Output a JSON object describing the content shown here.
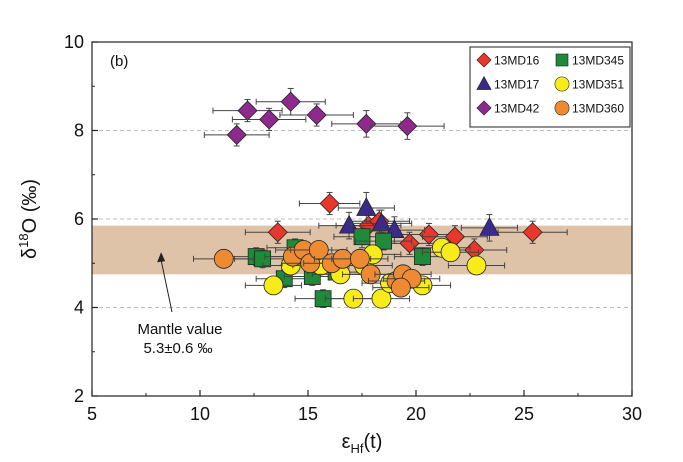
{
  "chart_data": {
    "type": "scatter",
    "panel_label": "(b)",
    "xlabel": {
      "main": "ε",
      "sub": "Hf",
      "tail": "(t)"
    },
    "ylabel": {
      "pre": "δ",
      "sup": "18",
      "post": "O (‰)"
    },
    "xlim": [
      5,
      30
    ],
    "ylim": [
      2,
      10
    ],
    "xticks": [
      5,
      10,
      15,
      20,
      25,
      30
    ],
    "yticks": [
      2,
      4,
      6,
      8,
      10
    ],
    "grid_dashed_y": [
      4,
      6,
      8
    ],
    "mantle_band": {
      "center": 5.3,
      "half_width": 0.55,
      "color": "#d8b89a",
      "label_line1": "Mantle value",
      "label_line2": "5.3±0.6 ‰",
      "arrow_target": [
        8.2,
        5.25
      ]
    },
    "legend": [
      {
        "name": "13MD16",
        "shape": "diamond",
        "color": "#e8372b"
      },
      {
        "name": "13MD345",
        "shape": "square",
        "color": "#1e8a3a"
      },
      {
        "name": "13MD17",
        "shape": "triangle",
        "color": "#3a2a8a"
      },
      {
        "name": "13MD351",
        "shape": "circle",
        "color": "#f7ec1a"
      },
      {
        "name": "13MD42",
        "shape": "diamond",
        "color": "#8e2a8e"
      },
      {
        "name": "13MD360",
        "shape": "circle",
        "color": "#ee8a32"
      }
    ],
    "series": [
      {
        "name": "13MD42",
        "shape": "diamond",
        "color": "#8e2a8e",
        "points": [
          {
            "x": 11.7,
            "y": 7.9,
            "xerr": 1.5,
            "yerr": 0.25
          },
          {
            "x": 12.2,
            "y": 8.45,
            "xerr": 1.6,
            "yerr": 0.25
          },
          {
            "x": 13.2,
            "y": 8.25,
            "xerr": 1.7,
            "yerr": 0.25
          },
          {
            "x": 14.2,
            "y": 8.65,
            "xerr": 1.6,
            "yerr": 0.3
          },
          {
            "x": 15.4,
            "y": 8.35,
            "xerr": 1.7,
            "yerr": 0.25
          },
          {
            "x": 17.7,
            "y": 8.15,
            "xerr": 1.6,
            "yerr": 0.3
          },
          {
            "x": 19.6,
            "y": 8.1,
            "xerr": 1.7,
            "yerr": 0.3
          }
        ]
      },
      {
        "name": "13MD16",
        "shape": "diamond",
        "color": "#e8372b",
        "points": [
          {
            "x": 13.6,
            "y": 5.7,
            "xerr": 1.5,
            "yerr": 0.25
          },
          {
            "x": 16.0,
            "y": 6.35,
            "xerr": 1.4,
            "yerr": 0.25
          },
          {
            "x": 17.8,
            "y": 5.85,
            "xerr": 1.5,
            "yerr": 0.25
          },
          {
            "x": 18.3,
            "y": 5.95,
            "xerr": 1.4,
            "yerr": 0.25
          },
          {
            "x": 19.7,
            "y": 5.45,
            "xerr": 1.5,
            "yerr": 0.25
          },
          {
            "x": 20.6,
            "y": 5.65,
            "xerr": 1.4,
            "yerr": 0.25
          },
          {
            "x": 21.8,
            "y": 5.6,
            "xerr": 1.5,
            "yerr": 0.25
          },
          {
            "x": 22.7,
            "y": 5.3,
            "xerr": 1.5,
            "yerr": 0.25
          },
          {
            "x": 25.4,
            "y": 5.7,
            "xerr": 1.6,
            "yerr": 0.25
          }
        ]
      },
      {
        "name": "13MD17",
        "shape": "triangle",
        "color": "#3a2a8a",
        "points": [
          {
            "x": 16.9,
            "y": 5.85,
            "xerr": 1.4,
            "yerr": 0.3
          },
          {
            "x": 17.7,
            "y": 6.25,
            "xerr": 1.3,
            "yerr": 0.35
          },
          {
            "x": 18.4,
            "y": 5.9,
            "xerr": 1.4,
            "yerr": 0.3
          },
          {
            "x": 19.0,
            "y": 5.75,
            "xerr": 1.4,
            "yerr": 0.3
          },
          {
            "x": 23.4,
            "y": 5.8,
            "xerr": 1.3,
            "yerr": 0.3
          }
        ]
      },
      {
        "name": "13MD345",
        "shape": "square",
        "color": "#1e8a3a",
        "points": [
          {
            "x": 12.6,
            "y": 5.15,
            "xerr": 1.3,
            "yerr": 0.2
          },
          {
            "x": 12.9,
            "y": 5.1,
            "xerr": 1.3,
            "yerr": 0.2
          },
          {
            "x": 13.9,
            "y": 4.65,
            "xerr": 1.3,
            "yerr": 0.2
          },
          {
            "x": 14.4,
            "y": 5.35,
            "xerr": 1.3,
            "yerr": 0.2
          },
          {
            "x": 15.2,
            "y": 4.7,
            "xerr": 1.3,
            "yerr": 0.2
          },
          {
            "x": 15.7,
            "y": 4.2,
            "xerr": 1.3,
            "yerr": 0.2
          },
          {
            "x": 16.3,
            "y": 4.8,
            "xerr": 1.3,
            "yerr": 0.2
          },
          {
            "x": 17.5,
            "y": 5.6,
            "xerr": 1.3,
            "yerr": 0.25
          },
          {
            "x": 18.5,
            "y": 5.5,
            "xerr": 1.3,
            "yerr": 0.2
          },
          {
            "x": 20.3,
            "y": 5.15,
            "xerr": 1.3,
            "yerr": 0.2
          }
        ]
      },
      {
        "name": "13MD351",
        "shape": "circle",
        "color": "#f7ec1a",
        "points": [
          {
            "x": 13.4,
            "y": 4.5,
            "xerr": 1.3,
            "yerr": 0.2
          },
          {
            "x": 14.2,
            "y": 4.95,
            "xerr": 1.3,
            "yerr": 0.2
          },
          {
            "x": 15.6,
            "y": 4.95,
            "xerr": 1.3,
            "yerr": 0.2
          },
          {
            "x": 16.5,
            "y": 4.75,
            "xerr": 1.3,
            "yerr": 0.2
          },
          {
            "x": 17.1,
            "y": 4.2,
            "xerr": 1.3,
            "yerr": 0.2
          },
          {
            "x": 17.6,
            "y": 4.95,
            "xerr": 1.3,
            "yerr": 0.2
          },
          {
            "x": 18.0,
            "y": 5.2,
            "xerr": 1.3,
            "yerr": 0.2
          },
          {
            "x": 18.4,
            "y": 4.2,
            "xerr": 1.3,
            "yerr": 0.2
          },
          {
            "x": 18.8,
            "y": 4.55,
            "xerr": 1.3,
            "yerr": 0.2
          },
          {
            "x": 20.3,
            "y": 4.5,
            "xerr": 1.3,
            "yerr": 0.2
          },
          {
            "x": 21.2,
            "y": 5.35,
            "xerr": 1.3,
            "yerr": 0.2
          },
          {
            "x": 21.6,
            "y": 5.25,
            "xerr": 1.3,
            "yerr": 0.2
          },
          {
            "x": 22.8,
            "y": 4.95,
            "xerr": 1.3,
            "yerr": 0.2
          }
        ]
      },
      {
        "name": "13MD360",
        "shape": "circle",
        "color": "#ee8a32",
        "points": [
          {
            "x": 11.1,
            "y": 5.1,
            "xerr": 1.4,
            "yerr": 0.2
          },
          {
            "x": 14.3,
            "y": 5.15,
            "xerr": 1.3,
            "yerr": 0.2
          },
          {
            "x": 14.8,
            "y": 5.3,
            "xerr": 1.3,
            "yerr": 0.2
          },
          {
            "x": 15.1,
            "y": 5.0,
            "xerr": 1.3,
            "yerr": 0.2
          },
          {
            "x": 15.5,
            "y": 5.3,
            "xerr": 1.3,
            "yerr": 0.2
          },
          {
            "x": 16.1,
            "y": 5.0,
            "xerr": 1.3,
            "yerr": 0.2
          },
          {
            "x": 16.6,
            "y": 5.1,
            "xerr": 1.3,
            "yerr": 0.2
          },
          {
            "x": 17.4,
            "y": 5.1,
            "xerr": 1.3,
            "yerr": 0.2
          },
          {
            "x": 17.9,
            "y": 4.75,
            "xerr": 1.3,
            "yerr": 0.2
          },
          {
            "x": 19.1,
            "y": 4.6,
            "xerr": 1.3,
            "yerr": 0.2
          },
          {
            "x": 19.4,
            "y": 4.75,
            "xerr": 1.3,
            "yerr": 0.2
          },
          {
            "x": 19.8,
            "y": 4.65,
            "xerr": 1.3,
            "yerr": 0.2
          },
          {
            "x": 19.3,
            "y": 4.45,
            "xerr": 1.3,
            "yerr": 0.2
          }
        ]
      }
    ]
  }
}
